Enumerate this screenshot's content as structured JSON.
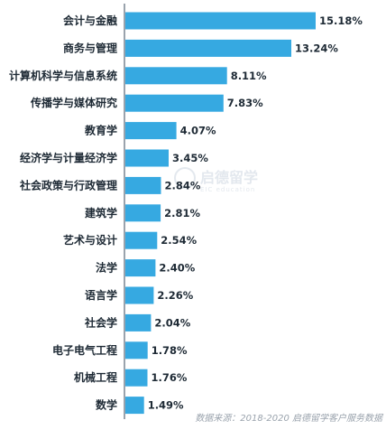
{
  "chart_data": {
    "type": "bar",
    "orientation": "horizontal",
    "categories": [
      "会计与金融",
      "商务与管理",
      "计算机科学与信息系统",
      "传播学与媒体研究",
      "教育学",
      "经济学与计量经济学",
      "社会政策与行政管理",
      "建筑学",
      "艺术与设计",
      "法学",
      "语言学",
      "社会学",
      "电子电气工程",
      "机械工程",
      "数学"
    ],
    "values": [
      15.18,
      13.24,
      8.11,
      7.83,
      4.07,
      3.45,
      2.84,
      2.81,
      2.54,
      2.4,
      2.26,
      2.04,
      1.78,
      1.76,
      1.49
    ],
    "value_labels": [
      "15.18%",
      "13.24%",
      "8.11%",
      "7.83%",
      "4.07%",
      "3.45%",
      "2.84%",
      "2.81%",
      "2.54%",
      "2.40%",
      "2.26%",
      "2.04%",
      "1.78%",
      "1.76%",
      "1.49%"
    ],
    "xlim": [
      0,
      15.18
    ],
    "grid": false,
    "bar_color": "#36a9e1",
    "axis_color": "#9aa3ad"
  },
  "watermark": {
    "text": "启德留学",
    "subtext": "EIC education"
  },
  "source": "数据来源：2018-2020 启德留学客户服务数据"
}
